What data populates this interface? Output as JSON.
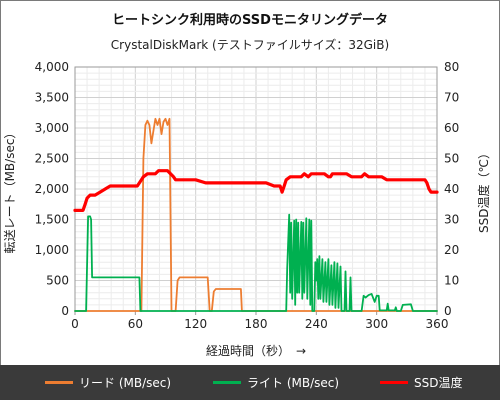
{
  "chart_data": {
    "type": "line",
    "title": "ヒートシンク利用時のSSDモニタリングデータ",
    "subtitle": "CrystalDiskMark (テストファイルサイズ：32GiB)",
    "xlabel": "経過時間（秒）　→",
    "ylabel_left": "転送レート（MB/sec）",
    "ylabel_right": "SSD温度（℃）",
    "xlim": [
      0,
      360
    ],
    "xticks": [
      "0",
      "60",
      "120",
      "180",
      "240",
      "300",
      "360"
    ],
    "ylim_left": [
      0,
      4000
    ],
    "yticks_left": [
      "0",
      "500",
      "1,000",
      "1,500",
      "2,000",
      "2,500",
      "3,000",
      "3,500",
      "4,000"
    ],
    "ylim_right": [
      0,
      80
    ],
    "yticks_right": [
      "0",
      "10",
      "20",
      "30",
      "40",
      "50",
      "60",
      "70",
      "80"
    ],
    "grid": true,
    "legend_position": "bottom",
    "series": [
      {
        "name": "リード (MB/sec)",
        "axis": "left",
        "color": "#ed7d31",
        "points": [
          [
            0,
            0
          ],
          [
            64,
            0
          ],
          [
            66,
            0
          ],
          [
            68,
            2500
          ],
          [
            70,
            3050
          ],
          [
            72,
            3120
          ],
          [
            74,
            3050
          ],
          [
            76,
            2750
          ],
          [
            78,
            2950
          ],
          [
            80,
            3150
          ],
          [
            82,
            3050
          ],
          [
            84,
            3150
          ],
          [
            86,
            2900
          ],
          [
            88,
            3100
          ],
          [
            90,
            3150
          ],
          [
            92,
            3050
          ],
          [
            94,
            3150
          ],
          [
            96,
            0
          ],
          [
            100,
            0
          ],
          [
            102,
            500
          ],
          [
            104,
            550
          ],
          [
            130,
            550
          ],
          [
            132,
            550
          ],
          [
            134,
            0
          ],
          [
            136,
            0
          ],
          [
            138,
            320
          ],
          [
            140,
            360
          ],
          [
            165,
            360
          ],
          [
            166,
            0
          ],
          [
            180,
            0
          ],
          [
            360,
            0
          ]
        ]
      },
      {
        "name": "ライト (MB/sec)",
        "axis": "left",
        "color": "#00b050",
        "points": [
          [
            0,
            0
          ],
          [
            11,
            0
          ],
          [
            13,
            1550
          ],
          [
            15,
            1550
          ],
          [
            16,
            1500
          ],
          [
            17,
            550
          ],
          [
            18,
            550
          ],
          [
            64,
            550
          ],
          [
            65,
            0
          ],
          [
            210,
            0
          ],
          [
            211,
            700
          ],
          [
            213,
            1580
          ],
          [
            214,
            300
          ],
          [
            215,
            1450
          ],
          [
            216,
            200
          ],
          [
            218,
            1480
          ],
          [
            219,
            100
          ],
          [
            220,
            1500
          ],
          [
            221,
            300
          ],
          [
            222,
            1450
          ],
          [
            223,
            300
          ],
          [
            225,
            1460
          ],
          [
            226,
            200
          ],
          [
            227,
            1450
          ],
          [
            228,
            300
          ],
          [
            230,
            1520
          ],
          [
            231,
            200
          ],
          [
            233,
            1500
          ],
          [
            234,
            100
          ],
          [
            235,
            1480
          ],
          [
            236,
            0
          ],
          [
            238,
            0
          ],
          [
            239,
            800
          ],
          [
            240,
            500
          ],
          [
            241,
            850
          ],
          [
            242,
            200
          ],
          [
            243,
            900
          ],
          [
            244,
            200
          ],
          [
            246,
            850
          ],
          [
            247,
            150
          ],
          [
            249,
            800
          ],
          [
            250,
            150
          ],
          [
            252,
            850
          ],
          [
            253,
            100
          ],
          [
            255,
            750
          ],
          [
            256,
            100
          ],
          [
            258,
            800
          ],
          [
            259,
            50
          ],
          [
            261,
            780
          ],
          [
            262,
            50
          ],
          [
            264,
            730
          ],
          [
            265,
            0
          ],
          [
            268,
            0
          ],
          [
            269,
            650
          ],
          [
            270,
            0
          ],
          [
            273,
            0
          ],
          [
            274,
            550
          ],
          [
            275,
            0
          ],
          [
            285,
            0
          ],
          [
            287,
            250
          ],
          [
            289,
            220
          ],
          [
            292,
            260
          ],
          [
            295,
            280
          ],
          [
            298,
            150
          ],
          [
            300,
            250
          ],
          [
            302,
            250
          ],
          [
            303,
            10
          ],
          [
            310,
            10
          ],
          [
            311,
            120
          ],
          [
            312,
            10
          ],
          [
            318,
            10
          ],
          [
            319,
            60
          ],
          [
            320,
            0
          ],
          [
            324,
            0
          ],
          [
            326,
            100
          ],
          [
            334,
            110
          ],
          [
            336,
            0
          ],
          [
            360,
            0
          ]
        ]
      },
      {
        "name": "SSD温度",
        "axis": "right",
        "color": "#ff0000",
        "points": [
          [
            0,
            33
          ],
          [
            3,
            33
          ],
          [
            5,
            33
          ],
          [
            8,
            33
          ],
          [
            10,
            35
          ],
          [
            12,
            37
          ],
          [
            15,
            38
          ],
          [
            20,
            38
          ],
          [
            25,
            39
          ],
          [
            30,
            40
          ],
          [
            35,
            41
          ],
          [
            62,
            41
          ],
          [
            64,
            42
          ],
          [
            68,
            44
          ],
          [
            72,
            45
          ],
          [
            75,
            45
          ],
          [
            78,
            45
          ],
          [
            80,
            45
          ],
          [
            83,
            46
          ],
          [
            88,
            46
          ],
          [
            92,
            46
          ],
          [
            95,
            45
          ],
          [
            98,
            44
          ],
          [
            100,
            43
          ],
          [
            110,
            43
          ],
          [
            120,
            43
          ],
          [
            130,
            42
          ],
          [
            140,
            42
          ],
          [
            150,
            42
          ],
          [
            160,
            42
          ],
          [
            170,
            42
          ],
          [
            180,
            42
          ],
          [
            190,
            42
          ],
          [
            198,
            41
          ],
          [
            200,
            41
          ],
          [
            204,
            41
          ],
          [
            206,
            39
          ],
          [
            208,
            41
          ],
          [
            210,
            43
          ],
          [
            214,
            44
          ],
          [
            220,
            44
          ],
          [
            225,
            44
          ],
          [
            228,
            45
          ],
          [
            232,
            44
          ],
          [
            235,
            45
          ],
          [
            240,
            45
          ],
          [
            248,
            45
          ],
          [
            252,
            44
          ],
          [
            254,
            44
          ],
          [
            256,
            45
          ],
          [
            265,
            45
          ],
          [
            270,
            45
          ],
          [
            275,
            44
          ],
          [
            280,
            44
          ],
          [
            285,
            44
          ],
          [
            288,
            45
          ],
          [
            292,
            44
          ],
          [
            300,
            44
          ],
          [
            305,
            44
          ],
          [
            310,
            43
          ],
          [
            320,
            43
          ],
          [
            330,
            43
          ],
          [
            340,
            43
          ],
          [
            348,
            43
          ],
          [
            350,
            42
          ],
          [
            352,
            40
          ],
          [
            354,
            39
          ],
          [
            356,
            39
          ],
          [
            358,
            39
          ],
          [
            360,
            39
          ]
        ]
      }
    ]
  }
}
